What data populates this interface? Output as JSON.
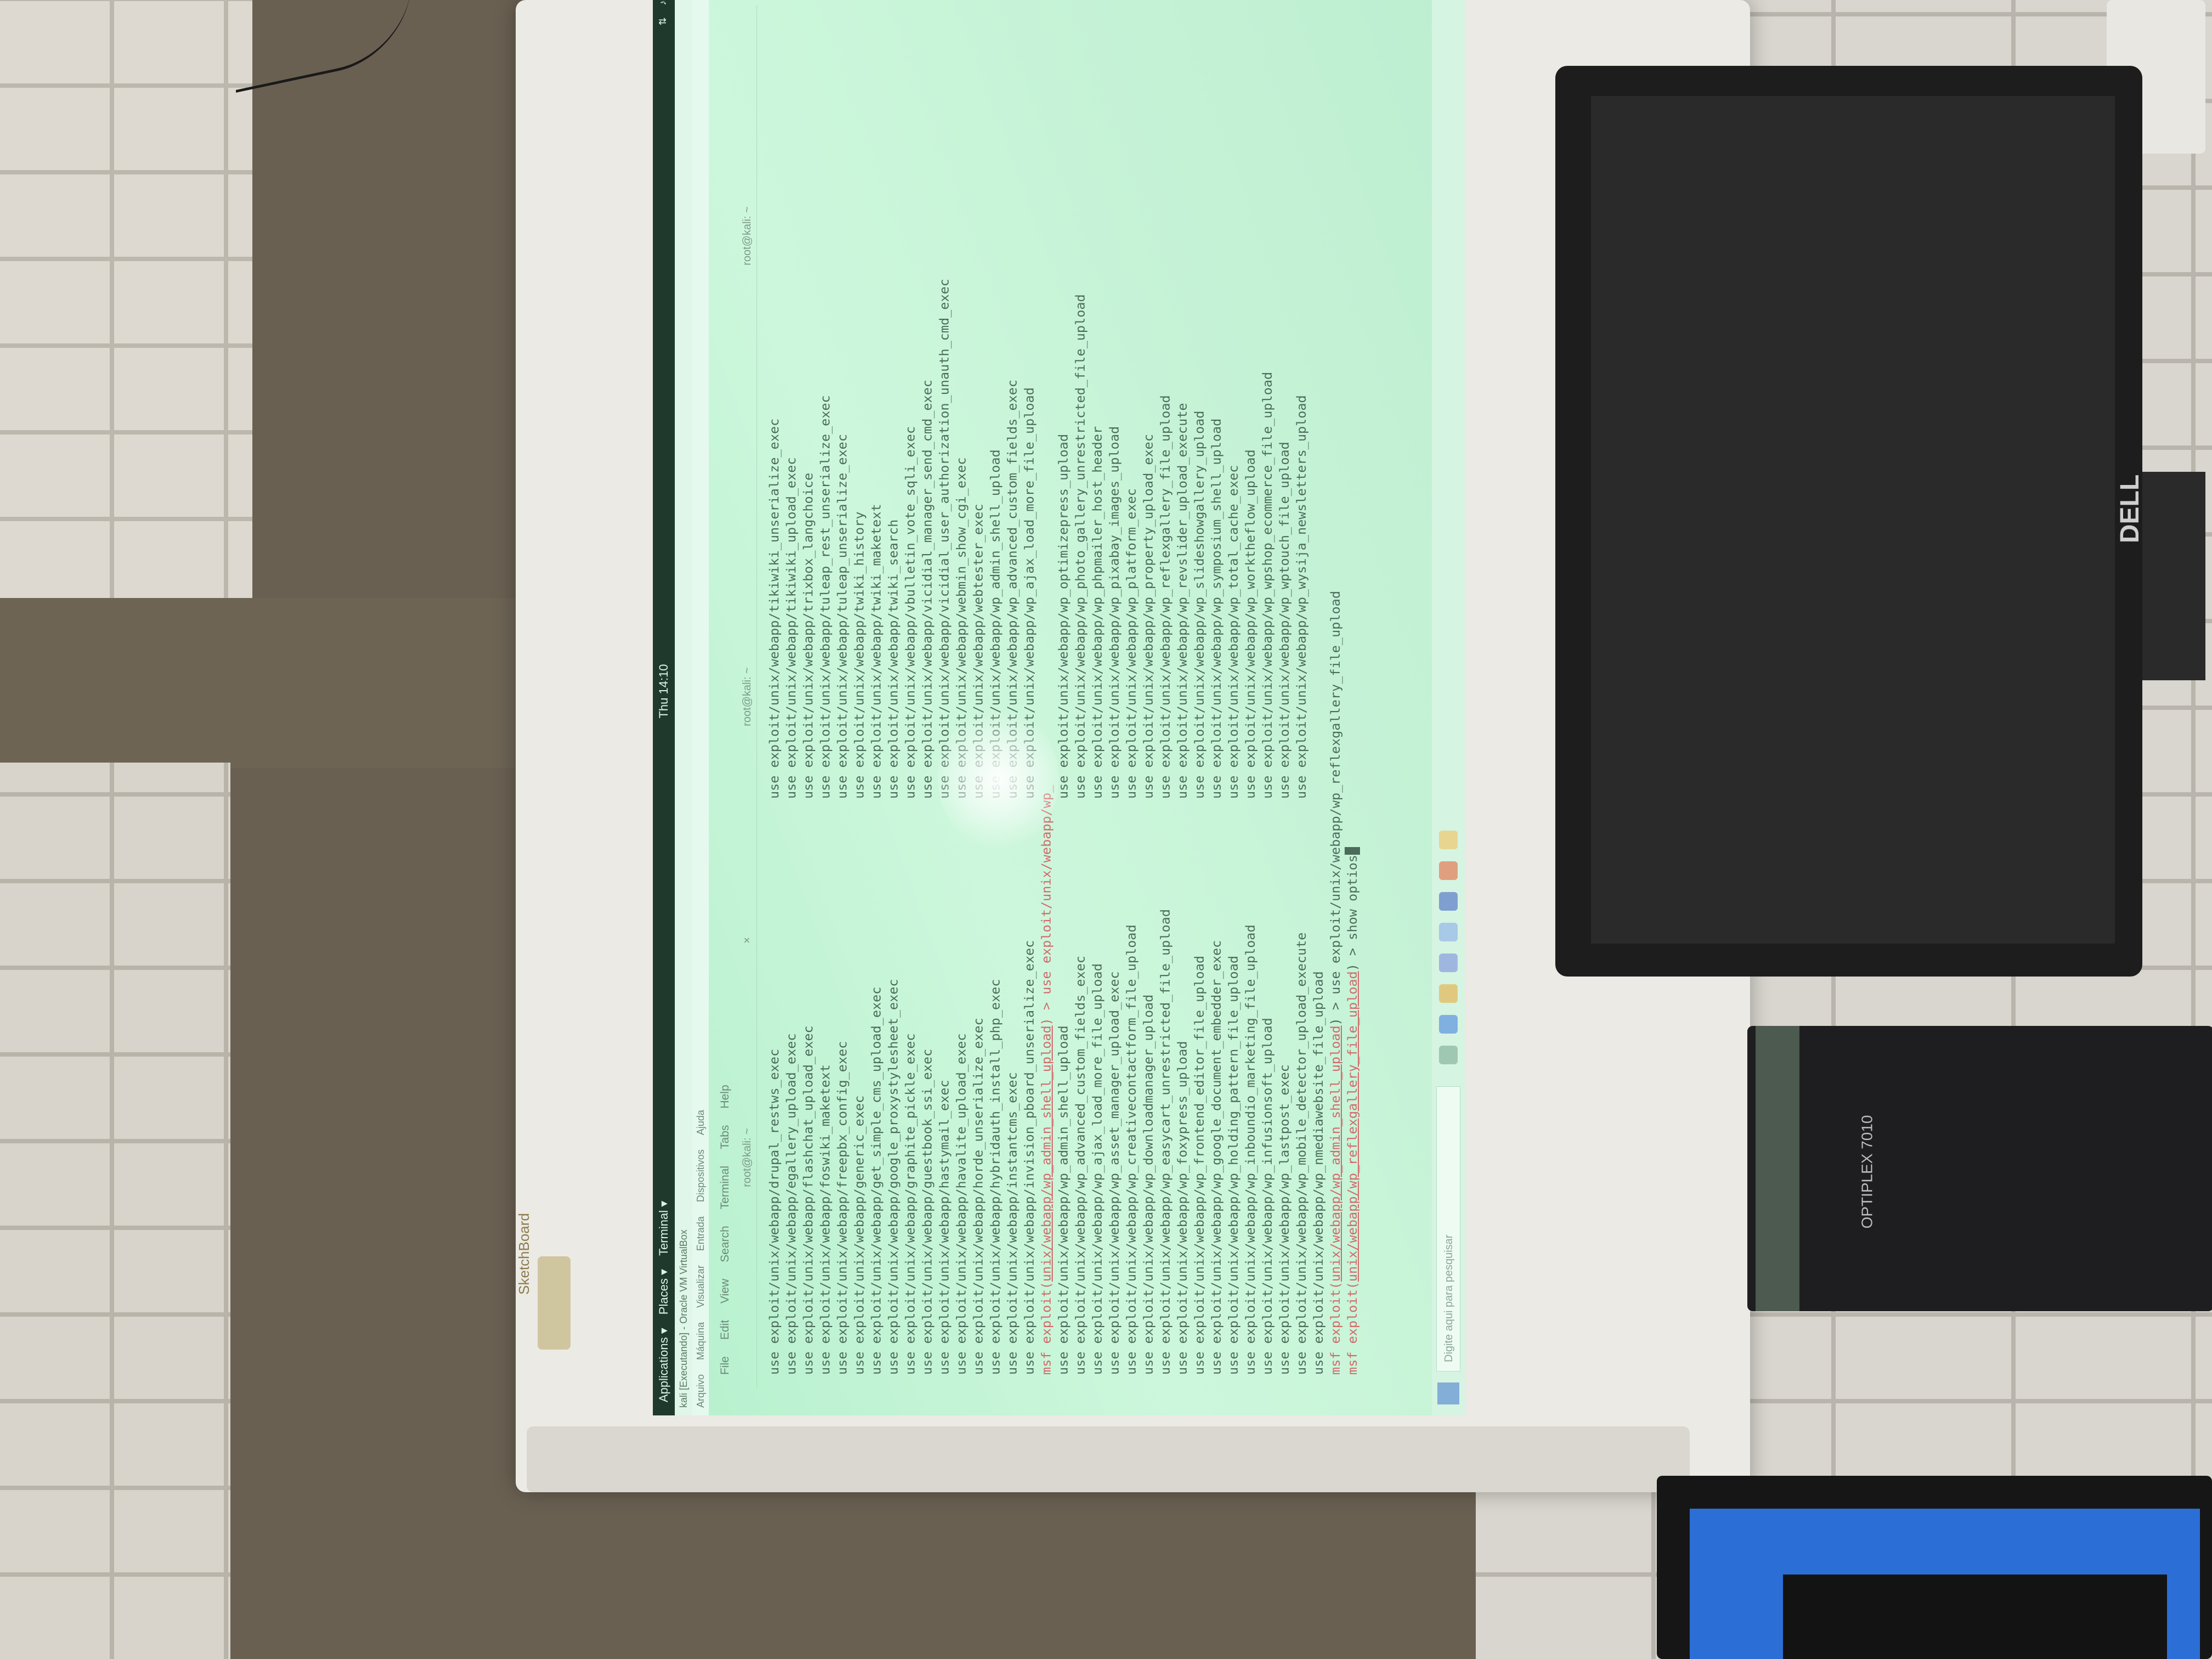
{
  "vm_window": {
    "title": "kali [Executando] - Oracle VM VirtualBox",
    "menu": [
      "Arquivo",
      "Máquina",
      "Visualizar",
      "Entrada",
      "Dispositivos",
      "Ajuda"
    ]
  },
  "gnome_topbar": {
    "applications": "Applications ▾",
    "places": "Places ▾",
    "app": "Terminal ▾",
    "clock": "Thu 14:10"
  },
  "terminal": {
    "menu": [
      "File",
      "Edit",
      "View",
      "Search",
      "Terminal",
      "Tabs",
      "Help"
    ],
    "tabs": [
      "root@kali: ~",
      "root@kali: ~",
      "root@kali: ~"
    ],
    "col1": [
      "use exploit/unix/webapp/drupal_restws_exec",
      "use exploit/unix/webapp/egallery_upload_exec",
      "use exploit/unix/webapp/flashchat_upload_exec",
      "use exploit/unix/webapp/foswiki_maketext",
      "use exploit/unix/webapp/freepbx_config_exec",
      "use exploit/unix/webapp/generic_exec",
      "use exploit/unix/webapp/get_simple_cms_upload_exec",
      "use exploit/unix/webapp/google_proxystylesheet_exec",
      "use exploit/unix/webapp/graphite_pickle_exec",
      "use exploit/unix/webapp/guestbook_ssi_exec",
      "use exploit/unix/webapp/hastymail_exec",
      "use exploit/unix/webapp/havalite_upload_exec",
      "use exploit/unix/webapp/horde_unserialize_exec",
      "use exploit/unix/webapp/hybridauth_install_php_exec",
      "use exploit/unix/webapp/instantcms_exec",
      "use exploit/unix/webapp/invision_pboard_unserialize_exec"
    ],
    "col2": [
      "use exploit/unix/webapp/tikiwiki_unserialize_exec",
      "use exploit/unix/webapp/tikiwiki_upload_exec",
      "use exploit/unix/webapp/trixbox_langchoice",
      "use exploit/unix/webapp/tuleap_rest_unserialize_exec",
      "use exploit/unix/webapp/tuleap_unserialize_exec",
      "use exploit/unix/webapp/twiki_history",
      "use exploit/unix/webapp/twiki_maketext",
      "use exploit/unix/webapp/twiki_search",
      "use exploit/unix/webapp/vbulletin_vote_sqli_exec",
      "use exploit/unix/webapp/vicidial_manager_send_cmd_exec",
      "use exploit/unix/webapp/vicidial_user_authorization_unauth_cmd_exec",
      "use exploit/unix/webapp/webmin_show_cgi_exec",
      "use exploit/unix/webapp/webtester_exec",
      "use exploit/unix/webapp/wp_admin_shell_upload",
      "use exploit/unix/webapp/wp_advanced_custom_fields_exec",
      "use exploit/unix/webapp/wp_ajax_load_more_file_upload"
    ],
    "cmd1_prefix": "msf exploit(",
    "cmd1_module": "unix/webapp/wp_admin_shell_upload",
    "cmd1_suffix": ") > use exploit/unix/webapp/wp_",
    "col3": [
      "use exploit/unix/webapp/wp_admin_shell_upload",
      "use exploit/unix/webapp/wp_advanced_custom_fields_exec",
      "use exploit/unix/webapp/wp_ajax_load_more_file_upload",
      "use exploit/unix/webapp/wp_asset_manager_upload_exec",
      "use exploit/unix/webapp/wp_creativecontactform_file_upload",
      "use exploit/unix/webapp/wp_downloadmanager_upload",
      "use exploit/unix/webapp/wp_easycart_unrestricted_file_upload",
      "use exploit/unix/webapp/wp_foxypress_upload",
      "use exploit/unix/webapp/wp_frontend_editor_file_upload",
      "use exploit/unix/webapp/wp_google_document_embedder_exec",
      "use exploit/unix/webapp/wp_holding_pattern_file_upload",
      "use exploit/unix/webapp/wp_inboundio_marketing_file_upload",
      "use exploit/unix/webapp/wp_infusionsoft_upload",
      "use exploit/unix/webapp/wp_lastpost_exec",
      "use exploit/unix/webapp/wp_mobile_detector_upload_execute",
      "use exploit/unix/webapp/wp_nmediawebsite_file_upload"
    ],
    "col4": [
      "use exploit/unix/webapp/wp_optimizepress_upload",
      "use exploit/unix/webapp/wp_photo_gallery_unrestricted_file_upload",
      "use exploit/unix/webapp/wp_phpmailer_host_header",
      "use exploit/unix/webapp/wp_pixabay_images_upload",
      "use exploit/unix/webapp/wp_platform_exec",
      "use exploit/unix/webapp/wp_property_upload_exec",
      "use exploit/unix/webapp/wp_reflexgallery_file_upload",
      "use exploit/unix/webapp/wp_revslider_upload_execute",
      "use exploit/unix/webapp/wp_slideshowgallery_upload",
      "use exploit/unix/webapp/wp_symposium_shell_upload",
      "use exploit/unix/webapp/wp_total_cache_exec",
      "use exploit/unix/webapp/wp_worktheflow_upload",
      "use exploit/unix/webapp/wp_wpshop_ecommerce_file_upload",
      "use exploit/unix/webapp/wp_wptouch_file_upload",
      "use exploit/unix/webapp/wp_wysija_newsletters_upload",
      ""
    ],
    "cmd2_prefix": "msf exploit(",
    "cmd2_module": "unix/webapp/wp_admin_shell_upload",
    "cmd2_suffix": ") > use exploit/unix/webapp/wp_reflexgallery_file_upload",
    "cmd3_prefix": "msf exploit(",
    "cmd3_module": "unix/webapp/wp_reflexgallery_file_upload",
    "cmd3_suffix": ") > show optios"
  },
  "taskbar": {
    "search_placeholder": "Digite aqui para pesquisar"
  },
  "room": {
    "board_brand": "SketchBoard",
    "monitor_brand": "DELL",
    "tower_brand": "OPTIPLEX 7010"
  }
}
